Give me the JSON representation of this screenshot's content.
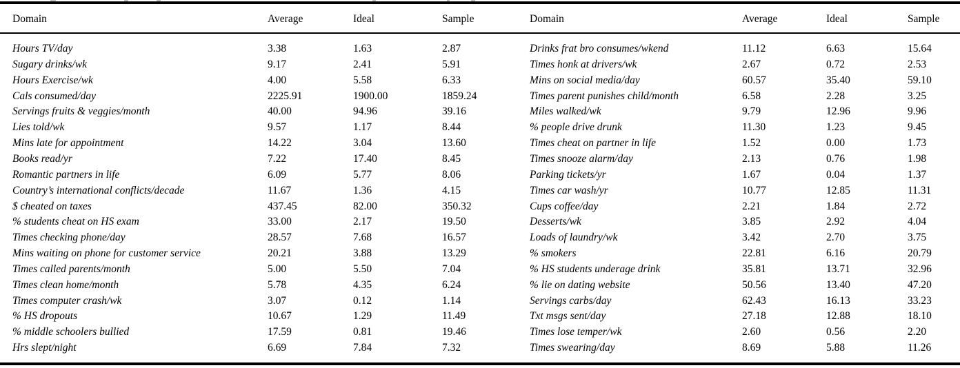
{
  "table": {
    "headers": {
      "domain": "Domain",
      "average": "Average",
      "ideal": "Ideal",
      "sample": "Sample"
    },
    "rows_left": [
      [
        "Hours TV/day",
        "3.38",
        "1.63",
        "2.87"
      ],
      [
        "Sugary drinks/wk",
        "9.17",
        "2.41",
        "5.91"
      ],
      [
        "Hours Exercise/wk",
        "4.00",
        "5.58",
        "6.33"
      ],
      [
        "Cals consumed/day",
        "2225.91",
        "1900.00",
        "1859.24"
      ],
      [
        "Servings fruits & veggies/month",
        "40.00",
        "94.96",
        "39.16"
      ],
      [
        "Lies told/wk",
        "9.57",
        "1.17",
        "8.44"
      ],
      [
        "Mins late for appointment",
        "14.22",
        "3.04",
        "13.60"
      ],
      [
        "Books read/yr",
        "7.22",
        "17.40",
        "8.45"
      ],
      [
        "Romantic partners in life",
        "6.09",
        "5.77",
        "8.06"
      ],
      [
        "Country’s international conflicts/decade",
        "11.67",
        "1.36",
        "4.15"
      ],
      [
        "$ cheated on taxes",
        "437.45",
        "82.00",
        "350.32"
      ],
      [
        "% students cheat on HS exam",
        "33.00",
        "2.17",
        "19.50"
      ],
      [
        "Times checking phone/day",
        "28.57",
        "7.68",
        "16.57"
      ],
      [
        "Mins waiting on phone for customer service",
        "20.21",
        "3.88",
        "13.29"
      ],
      [
        "Times called parents/month",
        "5.00",
        "5.50",
        "7.04"
      ],
      [
        "Times clean home/month",
        "5.78",
        "4.35",
        "6.24"
      ],
      [
        "Times computer crash/wk",
        "3.07",
        "0.12",
        "1.14"
      ],
      [
        "% HS dropouts",
        "10.67",
        "1.29",
        "11.49"
      ],
      [
        "% middle schoolers bullied",
        "17.59",
        "0.81",
        "19.46"
      ],
      [
        "Hrs slept/night",
        "6.69",
        "7.84",
        "7.32"
      ]
    ],
    "rows_right": [
      [
        "Drinks frat bro consumes/wkend",
        "11.12",
        "6.63",
        "15.64"
      ],
      [
        "Times honk at drivers/wk",
        "2.67",
        "0.72",
        "2.53"
      ],
      [
        "Mins on social media/day",
        "60.57",
        "35.40",
        "59.10"
      ],
      [
        "Times parent punishes child/month",
        "6.58",
        "2.28",
        "3.25"
      ],
      [
        "Miles walked/wk",
        "9.79",
        "12.96",
        "9.96"
      ],
      [
        "% people drive drunk",
        "11.30",
        "1.23",
        "9.45"
      ],
      [
        "Times cheat on partner in life",
        "1.52",
        "0.00",
        "1.73"
      ],
      [
        "Times snooze alarm/day",
        "2.13",
        "0.76",
        "1.98"
      ],
      [
        "Parking tickets/yr",
        "1.67",
        "0.04",
        "1.37"
      ],
      [
        "Times car wash/yr",
        "10.77",
        "12.85",
        "11.31"
      ],
      [
        "Cups coffee/day",
        "2.21",
        "1.84",
        "2.72"
      ],
      [
        "Desserts/wk",
        "3.85",
        "2.92",
        "4.04"
      ],
      [
        "Loads of laundry/wk",
        "3.42",
        "2.70",
        "3.75"
      ],
      [
        "% smokers",
        "22.81",
        "6.16",
        "20.79"
      ],
      [
        "% HS students underage drink",
        "35.81",
        "13.71",
        "32.96"
      ],
      [
        "% lie on dating website",
        "50.56",
        "13.40",
        "47.20"
      ],
      [
        "Servings carbs/day",
        "62.43",
        "16.13",
        "33.23"
      ],
      [
        "Txt msgs sent/day",
        "27.18",
        "12.88",
        "18.10"
      ],
      [
        "Times lose temper/wk",
        "2.60",
        "0.56",
        "2.20"
      ],
      [
        "Times swearing/day",
        "8.69",
        "5.88",
        "11.26"
      ]
    ]
  },
  "colors": {
    "paper": "#ffffff",
    "text": "#000000",
    "rule": "#000000",
    "fragment": "#b0b0b0"
  }
}
